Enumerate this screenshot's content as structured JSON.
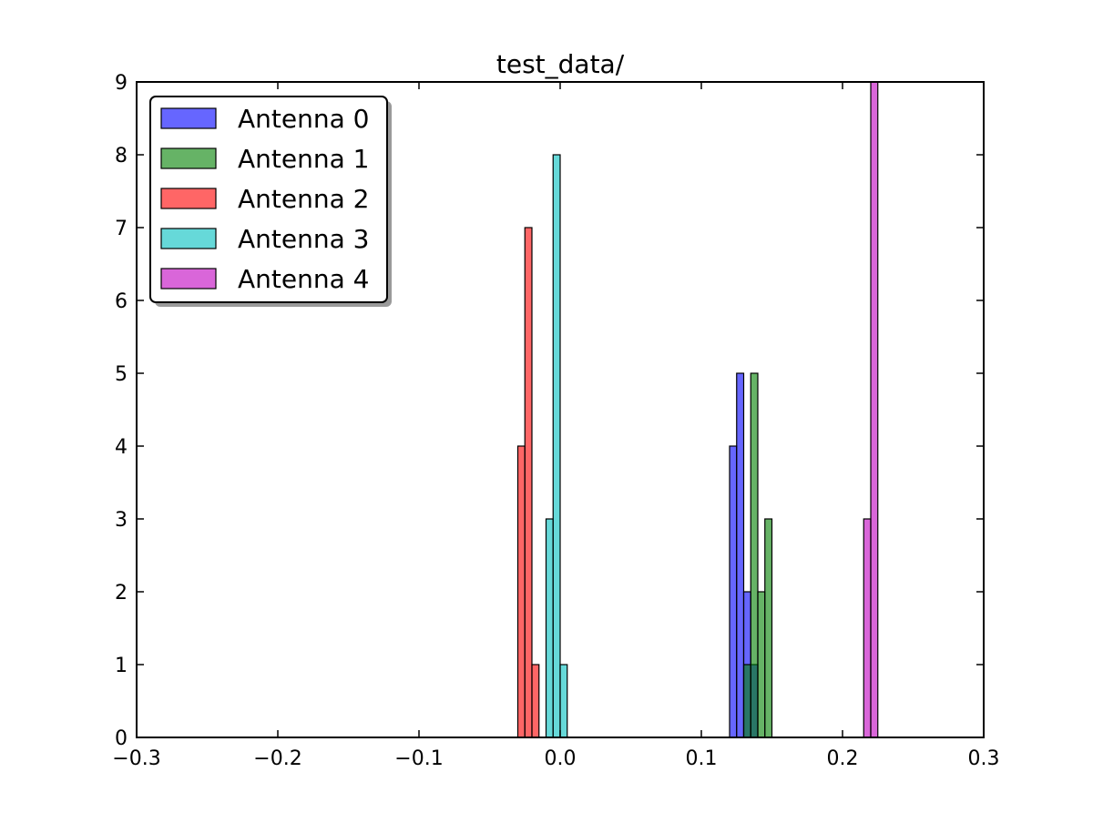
{
  "chart_data": {
    "type": "bar",
    "subtype": "histogram",
    "title": "test_data/",
    "xlabel": "",
    "ylabel": "",
    "xlim": [
      -0.3,
      0.3
    ],
    "ylim": [
      0,
      9
    ],
    "x_ticks": [
      -0.3,
      -0.2,
      -0.1,
      0.0,
      0.1,
      0.2,
      0.3
    ],
    "x_tick_labels": [
      "−0.3",
      "−0.2",
      "−0.1",
      "0.0",
      "0.1",
      "0.2",
      "0.3"
    ],
    "y_ticks": [
      0,
      1,
      2,
      3,
      4,
      5,
      6,
      7,
      8,
      9
    ],
    "y_tick_labels": [
      "0",
      "1",
      "2",
      "3",
      "4",
      "5",
      "6",
      "7",
      "8",
      "9"
    ],
    "grid": false,
    "legend_position": "top-left",
    "bin_width": 0.005,
    "series": [
      {
        "name": "Antenna 0",
        "color": "#0000ff",
        "bins": [
          {
            "left": 0.12,
            "count": 4
          },
          {
            "left": 0.125,
            "count": 5
          },
          {
            "left": 0.13,
            "count": 2
          },
          {
            "left": 0.135,
            "count": 1
          }
        ]
      },
      {
        "name": "Antenna 1",
        "color": "#008000",
        "bins": [
          {
            "left": 0.13,
            "count": 1
          },
          {
            "left": 0.135,
            "count": 5
          },
          {
            "left": 0.14,
            "count": 2
          },
          {
            "left": 0.145,
            "count": 3
          }
        ]
      },
      {
        "name": "Antenna 2",
        "color": "#ff0000",
        "bins": [
          {
            "left": -0.03,
            "count": 4
          },
          {
            "left": -0.025,
            "count": 7
          },
          {
            "left": -0.02,
            "count": 1
          }
        ]
      },
      {
        "name": "Antenna 3",
        "color": "#00bfbf",
        "bins": [
          {
            "left": -0.01,
            "count": 3
          },
          {
            "left": -0.005,
            "count": 8
          },
          {
            "left": 0.0,
            "count": 1
          }
        ]
      },
      {
        "name": "Antenna 4",
        "color": "#bf00bf",
        "bins": [
          {
            "left": 0.215,
            "count": 3
          },
          {
            "left": 0.22,
            "count": 9
          }
        ]
      }
    ]
  }
}
